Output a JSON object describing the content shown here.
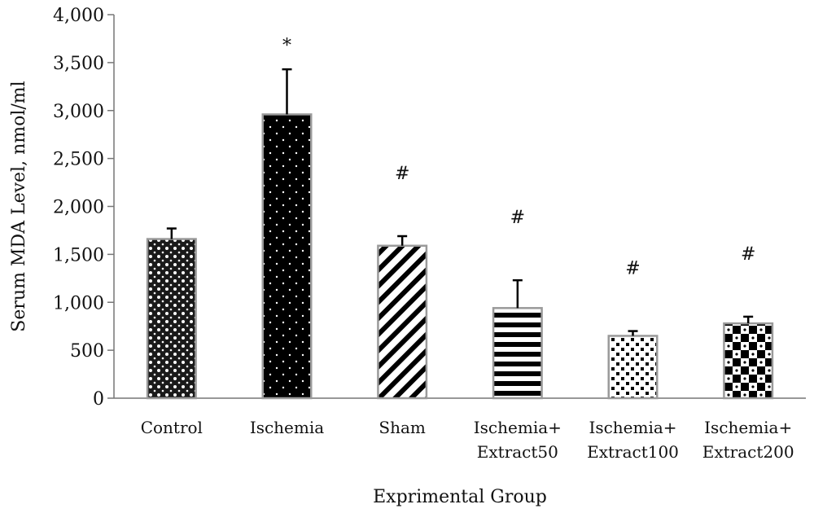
{
  "chart_data": {
    "type": "bar",
    "title": "",
    "xlabel": "Exprimental Group",
    "ylabel": "Serum MDA Level, nmol/ml",
    "ylim": [
      0,
      4000
    ],
    "yticks": [
      "0",
      "500",
      "1,000",
      "1,500",
      "2,000",
      "2,500",
      "3,000",
      "3,500",
      "4,000"
    ],
    "categories": [
      [
        "Control"
      ],
      [
        "Ischemia"
      ],
      [
        "Sham"
      ],
      [
        "Ischemia+",
        "Extract50"
      ],
      [
        "Ischemia+",
        "Extract100"
      ],
      [
        "Ischemia+",
        "Extract200"
      ]
    ],
    "values": [
      1660,
      2960,
      1590,
      940,
      650,
      780
    ],
    "errors": [
      110,
      470,
      100,
      290,
      50,
      70
    ],
    "annotations": [
      "",
      "*",
      "#",
      "#",
      "#",
      "#"
    ],
    "patterns": [
      "crosshatch-dots",
      "black-white-dots",
      "diagonal-stripes",
      "horizontal-stripes",
      "white-black-squares",
      "checkerboard"
    ],
    "grid": false,
    "legend": "none"
  }
}
